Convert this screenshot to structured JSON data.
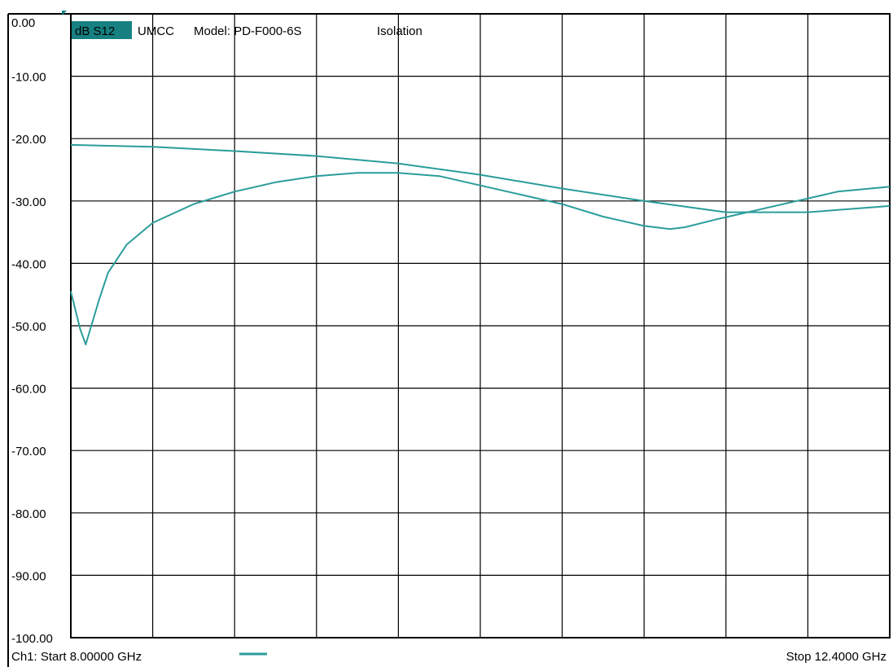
{
  "chart_data": {
    "type": "line",
    "title_parts": [
      "dB S12",
      "UMCC",
      "Model: PD-F000-6S",
      "Isolation"
    ],
    "ylim": [
      -100,
      0
    ],
    "xlim": [
      8.0,
      12.4
    ],
    "y_ticks": [
      "0.00",
      "-10.00",
      "-20.00",
      "-30.00",
      "-40.00",
      "-50.00",
      "-60.00",
      "-70.00",
      "-80.00",
      "-90.00",
      "-100.00"
    ],
    "x_divisions": 10,
    "grid": true,
    "start_label": "Ch1: Start  8.00000 GHz",
    "stop_label": "Stop  12.4000 GHz",
    "trace_color": "#2a9d9a",
    "badge_color": "#178080",
    "series": [
      {
        "x": [
          8.0,
          8.05,
          8.08,
          8.15,
          8.2,
          8.3,
          8.44,
          8.66,
          8.88,
          9.1,
          9.32,
          9.54,
          9.76,
          9.98,
          10.2,
          10.42,
          10.64,
          10.86,
          11.08,
          11.22,
          11.3,
          11.46,
          11.68,
          11.9,
          12.12,
          12.4
        ],
        "y": [
          -44.5,
          -50.5,
          -53.0,
          -46.0,
          -41.5,
          -37.0,
          -33.5,
          -30.5,
          -28.5,
          -27.0,
          -26.0,
          -25.5,
          -25.5,
          -26.0,
          -27.5,
          -29.0,
          -30.5,
          -32.5,
          -34.0,
          -34.5,
          -34.2,
          -33.0,
          -31.5,
          -30.0,
          -28.5,
          -27.7
        ]
      },
      {
        "x": [
          8.0,
          8.44,
          8.88,
          9.32,
          9.76,
          10.2,
          10.64,
          11.08,
          11.52,
          11.96,
          12.4
        ],
        "y": [
          -21.0,
          -21.3,
          -22.0,
          -22.8,
          -24.0,
          -25.8,
          -28.0,
          -30.0,
          -31.8,
          -31.8,
          -30.8
        ]
      }
    ]
  }
}
